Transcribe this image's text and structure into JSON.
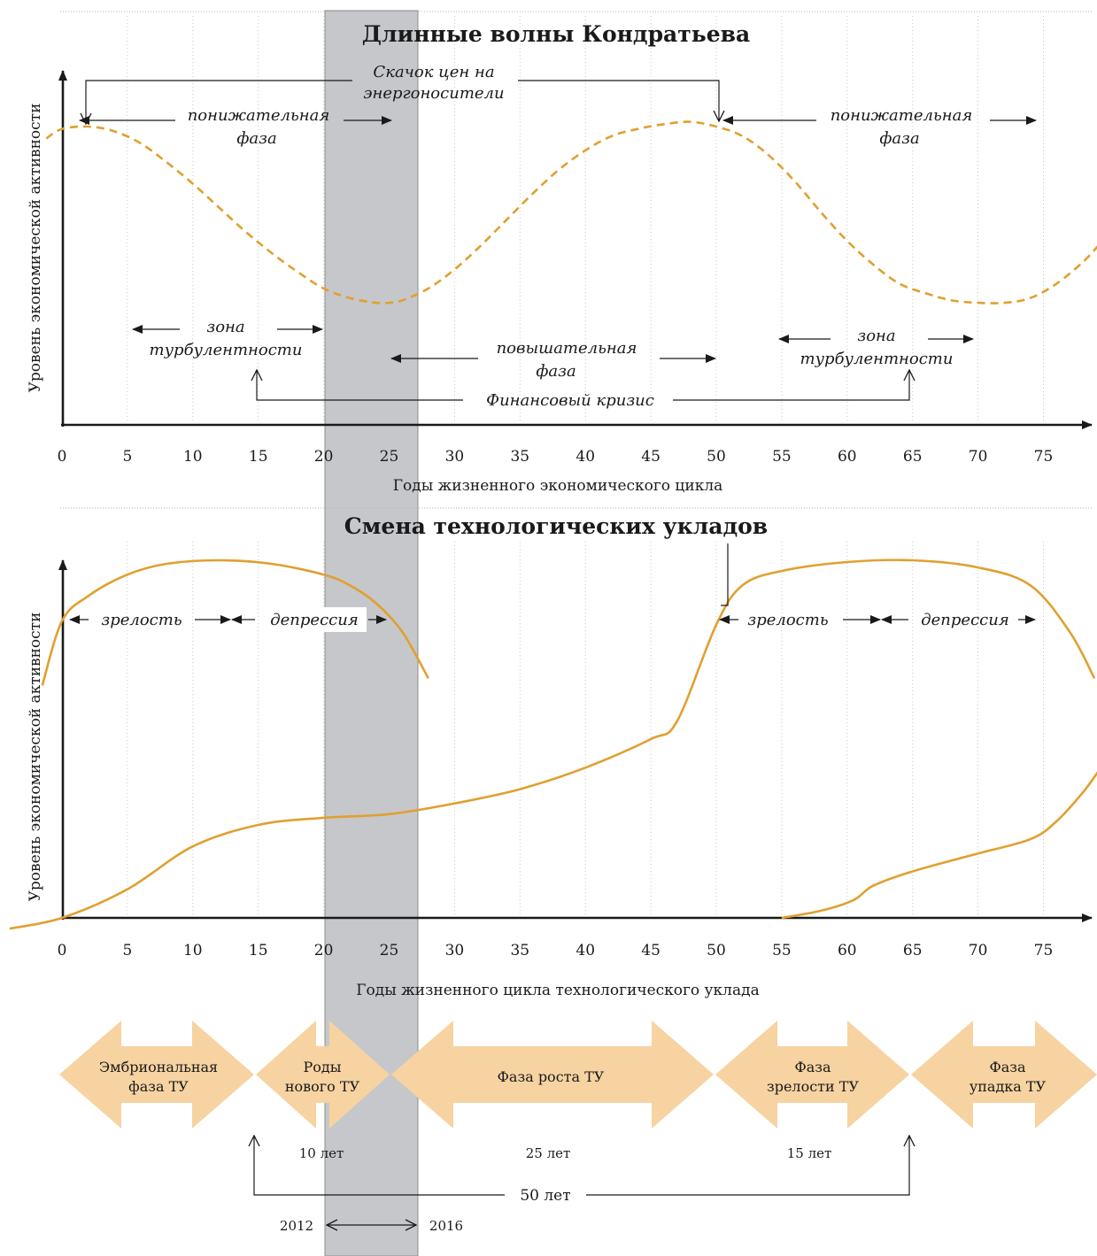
{
  "colors": {
    "curve": "#e0a030",
    "phase_arrow": "#f6d3a1",
    "highlight_band": "#c6c7cb",
    "ink": "#1a1a1a"
  },
  "chart_data": [
    {
      "type": "line",
      "title": "Длинные волны Кондратьева",
      "ylabel": "Уровень экономической активности",
      "xlabel": "Годы жизненного экономического цикла",
      "xticks": [
        0,
        5,
        10,
        15,
        20,
        25,
        30,
        35,
        40,
        45,
        50,
        55,
        60,
        65,
        70,
        75
      ],
      "xlim": [
        -1.8,
        79.5
      ],
      "ylim": [
        0,
        1
      ],
      "grid": "vertical-dotted",
      "series": [
        {
          "style": "dashed",
          "x": [
            -1.2,
            0,
            2,
            4,
            6,
            8,
            10,
            12,
            14,
            16,
            18,
            20,
            22,
            24,
            25,
            26,
            28,
            30,
            32,
            34,
            36,
            38,
            40,
            42,
            44,
            46,
            48,
            50,
            52,
            54,
            56,
            58,
            60,
            62,
            64,
            66,
            68,
            70,
            72,
            74,
            76,
            78,
            79.2
          ],
          "y": [
            0.95,
            0.99,
            1.0,
            0.98,
            0.93,
            0.85,
            0.76,
            0.66,
            0.56,
            0.47,
            0.39,
            0.32,
            0.28,
            0.26,
            0.26,
            0.27,
            0.32,
            0.4,
            0.5,
            0.61,
            0.72,
            0.82,
            0.9,
            0.96,
            0.99,
            1.01,
            1.02,
            1.0,
            0.96,
            0.88,
            0.77,
            0.64,
            0.52,
            0.42,
            0.34,
            0.3,
            0.27,
            0.26,
            0.26,
            0.28,
            0.34,
            0.43,
            0.5
          ]
        }
      ],
      "annotations": {
        "energy_jump_1": "Скачок цен на",
        "energy_jump_2": "энергоносители",
        "down_left_1": "понижательная",
        "down_left_2": "фаза",
        "down_right_1": "понижательная",
        "down_right_2": "фаза",
        "turb_left_1": "зона",
        "turb_left_2": "турбулентности",
        "turb_right_1": "зона",
        "turb_right_2": "турбулентности",
        "up_1": "повышательная",
        "up_2": "фаза",
        "crisis": "Финансовый кризис"
      }
    },
    {
      "type": "line",
      "title": "Смена технологических укладов",
      "ylabel": "Уровень экономической активности",
      "xlabel": "Годы жизненного цикла технологического уклада",
      "xticks": [
        0,
        5,
        10,
        15,
        20,
        25,
        30,
        35,
        40,
        45,
        50,
        55,
        60,
        65,
        70,
        75
      ],
      "xlim": [
        -1.8,
        79.5
      ],
      "ylim": [
        0,
        1
      ],
      "grid": "vertical-dotted",
      "series": [
        {
          "x": [
            -1.5,
            0,
            2,
            5,
            8,
            12,
            16,
            20,
            22,
            24,
            26,
            28
          ],
          "y": [
            0.65,
            0.83,
            0.9,
            0.96,
            0.99,
            1.0,
            0.99,
            0.96,
            0.93,
            0.88,
            0.8,
            0.67
          ]
        },
        {
          "x": [
            -4,
            0,
            5,
            10,
            15,
            20,
            25,
            30,
            35,
            40,
            45,
            47,
            50,
            52,
            55,
            60,
            65,
            70,
            74,
            77,
            78.9
          ],
          "y": [
            -0.03,
            0.0,
            0.08,
            0.2,
            0.26,
            0.28,
            0.29,
            0.32,
            0.36,
            0.42,
            0.5,
            0.55,
            0.82,
            0.93,
            0.97,
            0.995,
            1.0,
            0.98,
            0.93,
            0.8,
            0.67
          ]
        },
        {
          "x": [
            55,
            58,
            60.5,
            62,
            65,
            70,
            74,
            76,
            78,
            79.2
          ],
          "y": [
            0.0,
            0.02,
            0.05,
            0.09,
            0.13,
            0.18,
            0.22,
            0.27,
            0.35,
            0.41
          ]
        }
      ],
      "annotations": {
        "mature_1": "зрелость",
        "depression_1": "депрессия",
        "mature_2": "зрелость",
        "depression_2": "депрессия"
      }
    }
  ],
  "phases": [
    {
      "label_1": "Эмбриональная",
      "label_2": "фаза ТУ"
    },
    {
      "label_1": "Роды",
      "label_2": "нового ТУ"
    },
    {
      "label_1": "Фаза роста ТУ",
      "label_2": ""
    },
    {
      "label_1": "Фаза",
      "label_2": "зрелости ТУ"
    },
    {
      "label_1": "Фаза",
      "label_2": "упадка ТУ"
    }
  ],
  "durations": {
    "birth": "10 лет",
    "growth": "25 лет",
    "maturity": "15 лет",
    "total": "50 лет",
    "year_start": "2012",
    "year_end": "2016"
  }
}
